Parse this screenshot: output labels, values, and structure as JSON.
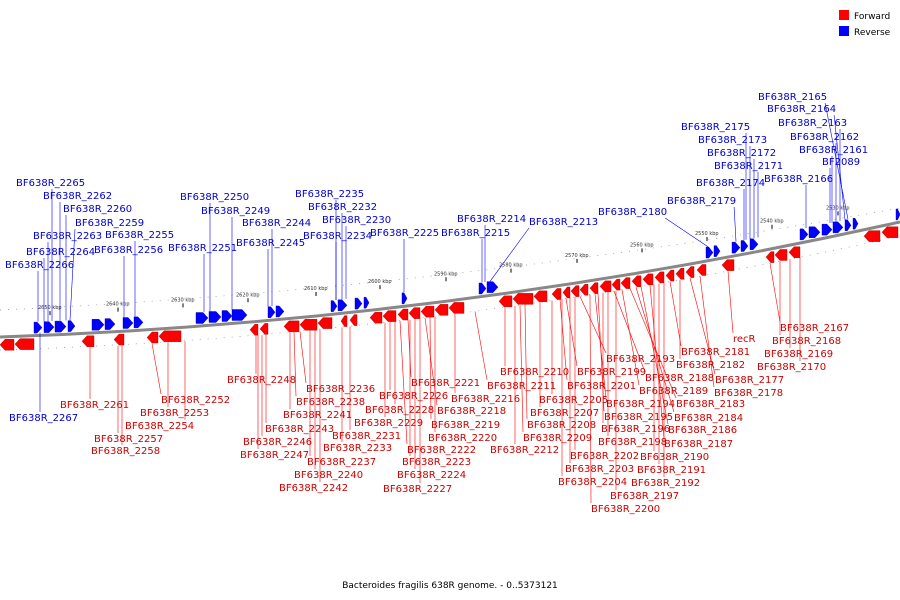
{
  "legend": {
    "forward": {
      "label": "Forward",
      "color": "#ff0000"
    },
    "reverse": {
      "label": "Reverse",
      "color": "#0000ff"
    }
  },
  "caption": "Bacteroides fragilis 638R genome. - 0..5373121",
  "ticks": [
    "2650 kbp",
    "2640 kbp",
    "2630 kbp",
    "2620 kbp",
    "2610 kbp",
    "2600 kbp",
    "2590 kbp",
    "2580 kbp",
    "2570 kbp",
    "2560 kbp",
    "2550 kbp",
    "2540 kbp",
    "2530 kbp"
  ],
  "reverse_labels": [
    "BF638R_2265",
    "BF638R_2262",
    "BF638R_2260",
    "BF638R_2259",
    "BF638R_2263",
    "BF638R_2255",
    "BF638R_2264",
    "BF638R_2256",
    "BF638R_2266",
    "BF638R_2250",
    "BF638R_2249",
    "BF638R_2251",
    "BF638R_2244",
    "BF638R_2245",
    "BF638R_2235",
    "BF638R_2232",
    "BF638R_2230",
    "BF638R_2234",
    "BF638R_2225",
    "BF638R_2214",
    "BF638R_2215",
    "BF638R_2213",
    "BF638R_2180",
    "BF638R_2175",
    "BF638R_2173",
    "BF638R_2172",
    "BF638R_2171",
    "BF638R_2174",
    "BF638R_2179",
    "BF638R_2165",
    "BF638R_2164",
    "BF638R_2163",
    "BF638R_2162",
    "BF638R_2161",
    "BF2089",
    "BF638R_2166",
    "BF638R_2267"
  ],
  "forward_labels": [
    "BF638R_2261",
    "BF638R_2257",
    "BF638R_2258",
    "BF638R_2252",
    "BF638R_2253",
    "BF638R_2254",
    "BF638R_2248",
    "BF638R_2236",
    "BF638R_2238",
    "BF638R_2241",
    "BF638R_2243",
    "BF638R_2246",
    "BF638R_2247",
    "BF638R_2237",
    "BF638R_2240",
    "BF638R_2242",
    "BF638R_2226",
    "BF638R_2228",
    "BF638R_2229",
    "BF638R_2231",
    "BF638R_2233",
    "BF638R_2221",
    "BF638R_2218",
    "BF638R_2219",
    "BF638R_2220",
    "BF638R_2222",
    "BF638R_2223",
    "BF638R_2224",
    "BF638R_2227",
    "BF638R_2216",
    "BF638R_2211",
    "BF638R_2210",
    "BF638R_2212",
    "BF638R_2209",
    "BF638R_2208",
    "BF638R_2207",
    "BF638R_2205",
    "BF638R_2201",
    "BF638R_2199",
    "BF638R_2193",
    "BF638R_2202",
    "BF638R_2203",
    "BF638R_2204",
    "BF638R_2194",
    "BF638R_2195",
    "BF638R_2196",
    "BF638R_2198",
    "BF638R_2197",
    "BF638R_2200",
    "BF638R_2188",
    "BF638R_2189",
    "BF638R_2183",
    "BF638R_2184",
    "BF638R_2186",
    "BF638R_2187",
    "BF638R_2190",
    "BF638R_2191",
    "BF638R_2192",
    "BF638R_2181",
    "BF638R_2182",
    "BF638R_2177",
    "BF638R_2178",
    "recR",
    "BF638R_2167",
    "BF638R_2168",
    "BF638R_2169",
    "BF638R_2170"
  ]
}
